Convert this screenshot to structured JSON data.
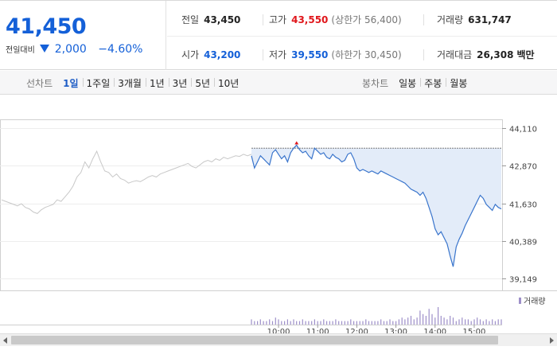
{
  "summary": {
    "current_price": "41,450",
    "change_label": "전일대비",
    "change_amount": "2,000",
    "change_rate": "−4.60%",
    "prev_close": {
      "label": "전일",
      "value": "43,450"
    },
    "high": {
      "label": "고가",
      "value": "43,550",
      "limit": "(상한가 56,400)"
    },
    "volume": {
      "label": "거래량",
      "value": "631,747"
    },
    "open": {
      "label": "시가",
      "value": "43,200"
    },
    "low": {
      "label": "저가",
      "value": "39,550",
      "limit": "(하한가 30,450)"
    },
    "amount": {
      "label": "거래대금",
      "value": "26,308",
      "unit": "백만"
    }
  },
  "tabs": {
    "line_chart_label": "선차트",
    "line_periods": [
      "1일",
      "1주일",
      "3개월",
      "1년",
      "3년",
      "5년",
      "10년"
    ],
    "active_period": "1일",
    "candle_chart_label": "봉차트",
    "candle_periods": [
      "일봉",
      "주봉",
      "월봉"
    ]
  },
  "colors": {
    "price_down": "#1460d8",
    "price_up": "#e0161b",
    "today_line": "#3a75cc",
    "today_fill": "#e3ecf9",
    "prev_line": "#c8c8c8",
    "volume_bar": "#9d8fc9"
  },
  "chart_data": {
    "type": "line",
    "title": "",
    "xlabel": "",
    "ylabel": "",
    "y_ticks": [
      "44,110",
      "42,870",
      "41,630",
      "40,389",
      "39,149"
    ],
    "y_tick_values": [
      44110,
      42870,
      41630,
      40389,
      39149
    ],
    "ylim": [
      38900,
      44400
    ],
    "baseline_price": 43450,
    "grid": "horizontal",
    "legend": "volume-top-right",
    "volume_legend": "거래량",
    "series": [
      {
        "key": "prev",
        "values": [
          41750,
          41700,
          41650,
          41600,
          41550,
          41620,
          41500,
          41450,
          41350,
          41300,
          41420,
          41500,
          41550,
          41600,
          41750,
          41700,
          41850,
          42000,
          42200,
          42500,
          42650,
          43000,
          42800,
          43100,
          43350,
          43000,
          42700,
          42650,
          42500,
          42600,
          42450,
          42400,
          42300,
          42350,
          42380,
          42350,
          42420,
          42500,
          42550,
          42500,
          42600,
          42650,
          42700,
          42750,
          42800,
          42850,
          42900,
          42950,
          42850,
          42800,
          42900,
          43000,
          43050,
          43000,
          43100,
          43050,
          43150,
          43100,
          43150,
          43200,
          43180,
          43250,
          43200,
          43250
        ]
      },
      {
        "key": "today",
        "values": [
          43200,
          42800,
          43000,
          43200,
          43100,
          43000,
          42900,
          43300,
          43400,
          43250,
          43100,
          43200,
          43000,
          43300,
          43450,
          43550,
          43400,
          43300,
          43350,
          43200,
          43100,
          43450,
          43350,
          43250,
          43300,
          43150,
          43100,
          43250,
          43150,
          43100,
          43000,
          43050,
          43250,
          43300,
          43100,
          42800,
          42700,
          42750,
          42700,
          42650,
          42700,
          42650,
          42600,
          42700,
          42650,
          42600,
          42550,
          42500,
          42450,
          42400,
          42350,
          42300,
          42200,
          42100,
          42050,
          42000,
          41900,
          42000,
          41800,
          41500,
          41200,
          40800,
          40600,
          40700,
          40500,
          40300,
          39900,
          39550,
          40200,
          40450,
          40650,
          40900,
          41100,
          41300,
          41500,
          41700,
          41900,
          41800,
          41600,
          41500,
          41400,
          41600,
          41500,
          41450
        ]
      }
    ],
    "x_tick_labels_today": [
      "10:00",
      "11:00",
      "12:00",
      "13:00",
      "14:00",
      "15:00"
    ],
    "x_tick_labels_prev": [],
    "prev_summary_text": "",
    "volume": {
      "values": [
        3,
        2,
        2,
        3,
        2,
        2,
        3,
        2,
        4,
        3,
        2,
        2,
        3,
        2,
        3,
        2,
        2,
        3,
        2,
        2,
        2,
        3,
        2,
        2,
        3,
        2,
        2,
        2,
        3,
        2,
        2,
        2,
        2,
        3,
        2,
        2,
        2,
        2,
        3,
        2,
        2,
        2,
        2,
        3,
        2,
        2,
        3,
        2,
        2,
        3,
        4,
        3,
        4,
        5,
        3,
        4,
        8,
        6,
        5,
        9,
        6,
        4,
        10,
        5,
        4,
        3,
        5,
        4,
        2,
        3,
        4,
        3,
        3,
        2,
        3,
        4,
        3,
        2,
        3,
        2,
        3,
        2,
        3,
        3
      ]
    }
  }
}
